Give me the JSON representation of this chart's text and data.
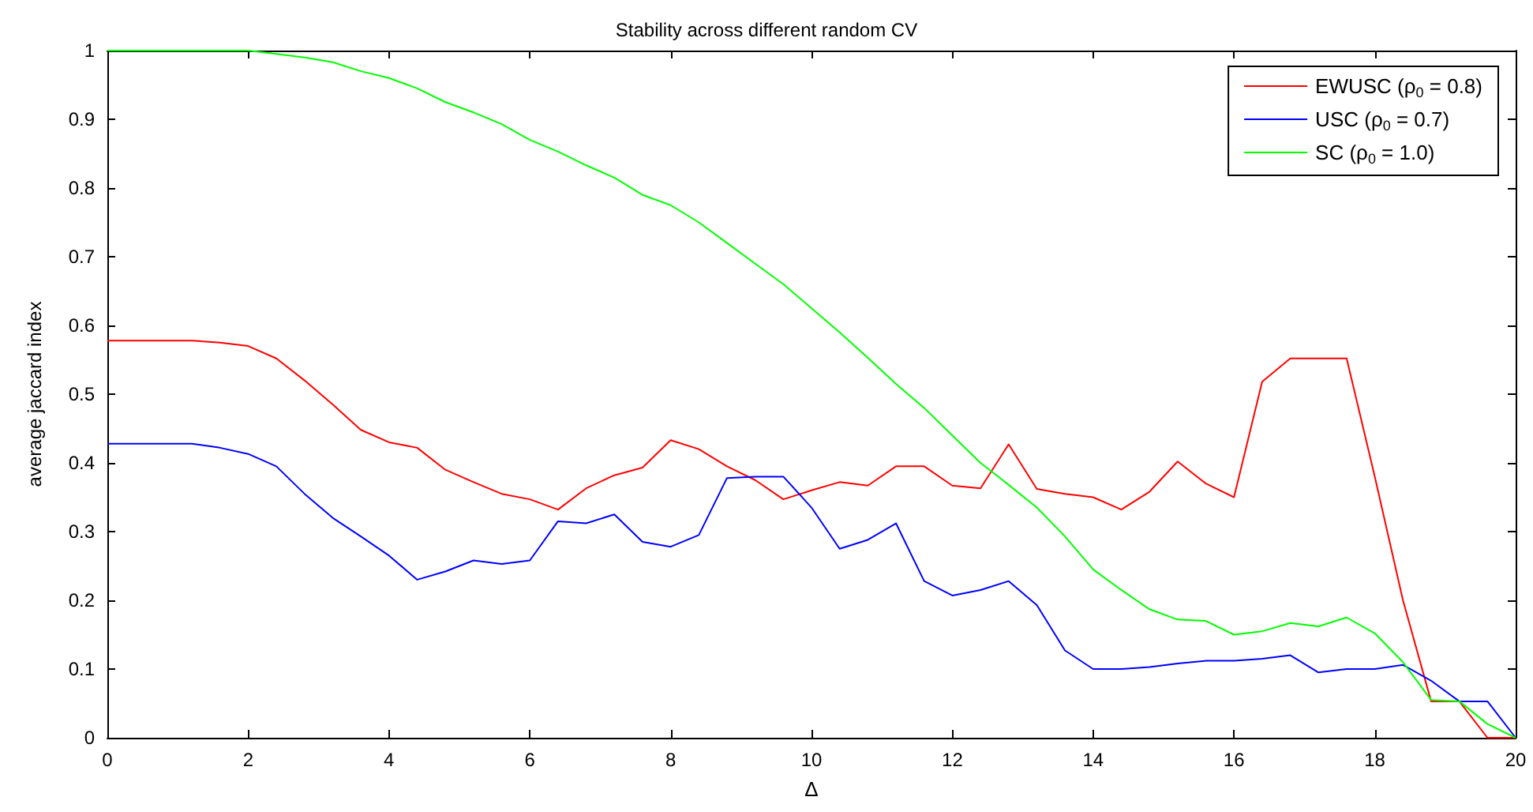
{
  "chart_data": {
    "type": "line",
    "title": "Stability across different random CV",
    "xlabel": "Δ",
    "ylabel": "average jaccard index",
    "x": [
      0,
      0.4,
      0.8,
      1.2,
      1.6,
      2,
      2.4,
      2.8,
      3.2,
      3.6,
      4,
      4.4,
      4.8,
      5.2,
      5.6,
      6,
      6.4,
      6.8,
      7.2,
      7.6,
      8,
      8.4,
      8.8,
      9.2,
      9.6,
      10,
      10.4,
      10.8,
      11.2,
      11.6,
      12,
      12.4,
      12.8,
      13.2,
      13.6,
      14,
      14.4,
      14.8,
      15.2,
      15.6,
      16,
      16.4,
      16.8,
      17.2,
      17.6,
      18,
      18.4,
      18.8,
      19.2,
      19.6,
      20
    ],
    "xlim": [
      0,
      20
    ],
    "xticks": [
      0,
      2,
      4,
      6,
      8,
      10,
      12,
      14,
      16,
      18,
      20
    ],
    "ylim": [
      0,
      1
    ],
    "yticks": [
      0,
      0.1,
      0.2,
      0.3,
      0.4,
      0.5,
      0.6,
      0.7,
      0.8,
      0.9,
      1
    ],
    "grid": false,
    "legend": "top right",
    "marker": "none",
    "line_style": "solid",
    "series": [
      {
        "name": "EWUSC (ρ$_{0}$ = 0.8)",
        "color": "#ff0000",
        "values": [
          0.578,
          0.578,
          0.578,
          0.578,
          0.575,
          0.57,
          0.552,
          0.52,
          0.485,
          0.448,
          0.43,
          0.422,
          0.39,
          0.372,
          0.355,
          0.347,
          0.332,
          0.363,
          0.382,
          0.393,
          0.433,
          0.42,
          0.395,
          0.375,
          0.347,
          0.36,
          0.372,
          0.367,
          0.395,
          0.395,
          0.367,
          0.363,
          0.427,
          0.362,
          0.355,
          0.35,
          0.332,
          0.358,
          0.402,
          0.37,
          0.35,
          0.518,
          0.552,
          0.552,
          0.552,
          0.38,
          0.2,
          0.053,
          0.053,
          0,
          0
        ]
      },
      {
        "name": "USC (ρ$_{0}$ = 0.7)",
        "color": "#0000ff",
        "values": [
          0.428,
          0.428,
          0.428,
          0.428,
          0.422,
          0.413,
          0.395,
          0.355,
          0.32,
          0.293,
          0.265,
          0.23,
          0.242,
          0.258,
          0.253,
          0.258,
          0.315,
          0.312,
          0.325,
          0.285,
          0.278,
          0.295,
          0.378,
          0.38,
          0.38,
          0.335,
          0.275,
          0.288,
          0.312,
          0.228,
          0.207,
          0.215,
          0.228,
          0.193,
          0.127,
          0.1,
          0.1,
          0.103,
          0.108,
          0.112,
          0.112,
          0.115,
          0.12,
          0.095,
          0.1,
          0.1,
          0.106,
          0.083,
          0.053,
          0.053,
          0
        ]
      },
      {
        "name": "SC (ρ$_{0}$ = 1.0)",
        "color": "#00ff00",
        "values": [
          1,
          1,
          1,
          1,
          1,
          1,
          0.995,
          0.99,
          0.983,
          0.97,
          0.96,
          0.945,
          0.925,
          0.91,
          0.893,
          0.87,
          0.853,
          0.833,
          0.815,
          0.79,
          0.775,
          0.75,
          0.72,
          0.69,
          0.66,
          0.625,
          0.59,
          0.553,
          0.515,
          0.48,
          0.44,
          0.4,
          0.368,
          0.335,
          0.293,
          0.245,
          0.215,
          0.187,
          0.172,
          0.17,
          0.15,
          0.155,
          0.167,
          0.162,
          0.175,
          0.152,
          0.11,
          0.055,
          0.053,
          0.02,
          0
        ]
      }
    ]
  }
}
